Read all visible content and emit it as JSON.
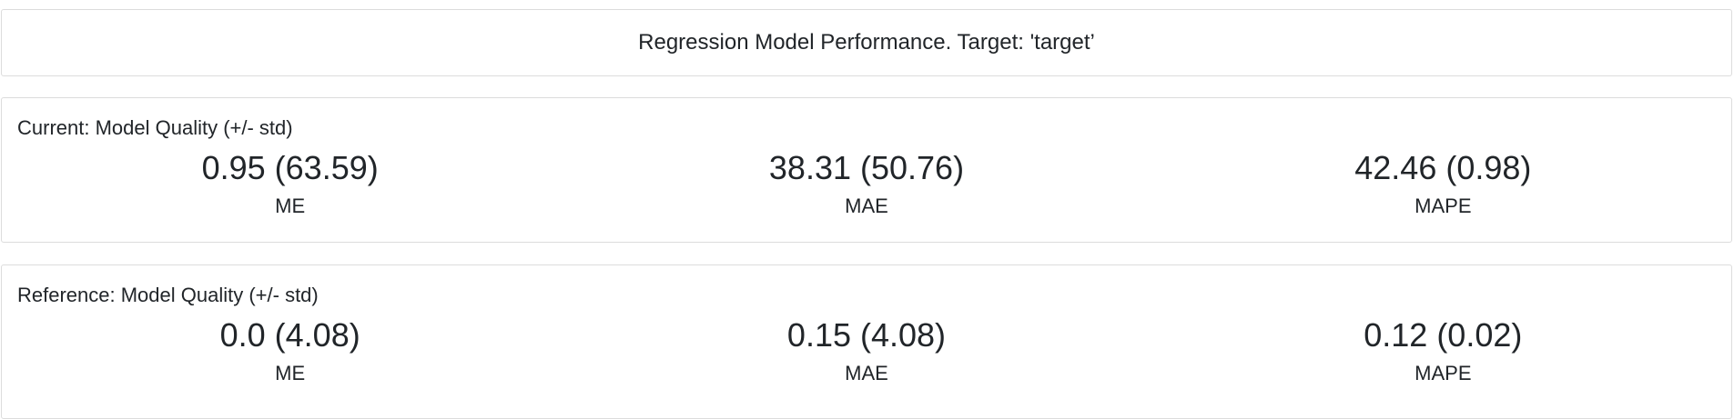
{
  "header": {
    "title": "Regression Model Performance. Target: 'target’"
  },
  "current": {
    "heading": "Current: Model Quality (+/- std)",
    "metrics": [
      {
        "value": "0.95 (63.59)",
        "label": "ME"
      },
      {
        "value": "38.31 (50.76)",
        "label": "MAE"
      },
      {
        "value": "42.46 (0.98)",
        "label": "MAPE"
      }
    ]
  },
  "reference": {
    "heading": "Reference: Model Quality (+/- std)",
    "metrics": [
      {
        "value": "0.0 (4.08)",
        "label": "ME"
      },
      {
        "value": "0.15 (4.08)",
        "label": "MAE"
      },
      {
        "value": "0.12 (0.02)",
        "label": "MAPE"
      }
    ]
  }
}
